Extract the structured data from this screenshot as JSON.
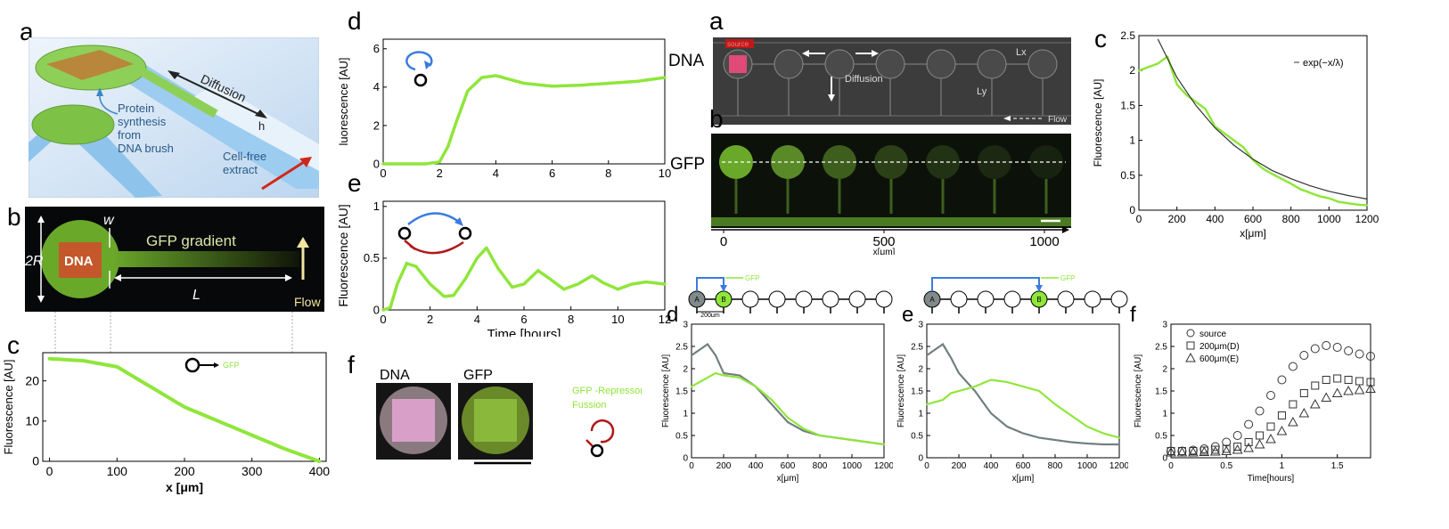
{
  "left": {
    "a": {
      "label": "a",
      "diffusion": "Diffusion",
      "h": "h",
      "synthesis": [
        "Protein",
        "synthesis",
        "from",
        "DNA brush"
      ],
      "extract": [
        "Cell-free",
        "extract"
      ]
    },
    "b": {
      "label": "b",
      "w": "w",
      "r2": "2R",
      "dna": "DNA",
      "gradient": "GFP gradient",
      "L": "L",
      "flow": "Flow"
    },
    "c": {
      "label": "c",
      "gfp": "GFP",
      "chart_data": {
        "type": "line",
        "x": [
          0,
          50,
          100,
          150,
          200,
          250,
          300,
          350,
          400
        ],
        "values": [
          25.5,
          25,
          23.5,
          18.5,
          13.5,
          10,
          6.5,
          3,
          0
        ],
        "xlabel": "x [μm]",
        "ylabel": "Fluorescence [AU]",
        "xticks": [
          "0",
          "100",
          "200",
          "300",
          "400"
        ],
        "yticks": [
          "0",
          "10",
          "20"
        ],
        "xlim": [
          -10,
          410
        ],
        "ylim": [
          0,
          27
        ]
      }
    },
    "d": {
      "label": "d",
      "chart_data": {
        "type": "line",
        "x": [
          0,
          1,
          1.5,
          2,
          2.3,
          2.6,
          3,
          3.5,
          4,
          5,
          6,
          7,
          8,
          9,
          10
        ],
        "values": [
          0,
          0,
          0,
          0.1,
          0.9,
          2.2,
          3.8,
          4.5,
          4.6,
          4.2,
          4.05,
          4.1,
          4.2,
          4.3,
          4.5
        ],
        "ylabel": "luorescence [AU]",
        "xticks": [
          "0",
          "2",
          "4",
          "6",
          "8",
          "10"
        ],
        "yticks": [
          "0",
          "2",
          "4",
          "6"
        ],
        "xlim": [
          0,
          10
        ],
        "ylim": [
          0,
          6.5
        ]
      }
    },
    "e": {
      "label": "e",
      "chart_data": {
        "type": "line",
        "x": [
          0,
          0.3,
          0.6,
          1,
          1.4,
          2,
          2.6,
          3,
          3.5,
          4,
          4.4,
          4.9,
          5.5,
          6,
          6.6,
          7.1,
          7.7,
          8.3,
          8.9,
          9.4,
          10,
          10.6,
          11.2,
          12
        ],
        "values": [
          0,
          0.02,
          0.25,
          0.45,
          0.42,
          0.25,
          0.13,
          0.14,
          0.3,
          0.5,
          0.6,
          0.4,
          0.22,
          0.25,
          0.38,
          0.3,
          0.2,
          0.25,
          0.33,
          0.26,
          0.2,
          0.25,
          0.27,
          0.25
        ],
        "xlabel": "Time [hours]",
        "ylabel": "Fluorescence [AU]",
        "xticks": [
          "0",
          "2",
          "4",
          "6",
          "8",
          "10",
          "12"
        ],
        "yticks": [
          "0",
          "0.5",
          "1"
        ],
        "xlim": [
          0,
          12
        ],
        "ylim": [
          0,
          1.05
        ]
      }
    },
    "f": {
      "label": "f",
      "dna": "DNA",
      "gfp": "GFP",
      "fusion": [
        "GFP -Repressor",
        "Fussion"
      ]
    }
  },
  "right": {
    "a": {
      "label": "a",
      "dna": "DNA",
      "source": "source",
      "diffusion": "Diffusion",
      "lx": "Lx",
      "ly": "Ly",
      "flow": "Flow"
    },
    "b": {
      "label": "b",
      "gfp": "GFP",
      "xticks": [
        "0",
        "500",
        "1000"
      ],
      "xlabel": "x[μm]"
    },
    "c": {
      "label": "c",
      "legend": "exp(−x/λ)",
      "chart_data": {
        "type": "line",
        "x": [
          0,
          100,
          150,
          200,
          250,
          300,
          350,
          400,
          450,
          500,
          550,
          600,
          650,
          700,
          750,
          800,
          850,
          900,
          950,
          1000,
          1050,
          1100,
          1150,
          1200
        ],
        "values": [
          2.0,
          2.1,
          2.2,
          1.8,
          1.65,
          1.55,
          1.45,
          1.2,
          1.1,
          1.0,
          0.9,
          0.72,
          0.6,
          0.52,
          0.45,
          0.38,
          0.3,
          0.25,
          0.2,
          0.17,
          0.12,
          0.1,
          0.08,
          0.07
        ],
        "fit": {
          "x": [
            100,
            200,
            300,
            400,
            500,
            600,
            700,
            800,
            900,
            1000,
            1100,
            1200
          ],
          "values": [
            2.45,
            1.9,
            1.5,
            1.18,
            0.93,
            0.73,
            0.57,
            0.45,
            0.35,
            0.27,
            0.21,
            0.16
          ]
        },
        "xlabel": "x[μm]",
        "ylabel": "Fluorescence [AU]",
        "xticks": [
          "0",
          "200",
          "400",
          "600",
          "800",
          "1000",
          "1200"
        ],
        "yticks": [
          "0",
          "0.5",
          "1",
          "1.5",
          "2",
          "2.5"
        ],
        "xlim": [
          0,
          1200
        ],
        "ylim": [
          0,
          2.5
        ]
      }
    },
    "d": {
      "label": "d",
      "gfp": "GFP",
      "node_a": "A",
      "node_b": "B",
      "spacing": "200μm",
      "chart_data": {
        "type": "line",
        "x": [
          0,
          100,
          150,
          200,
          300,
          400,
          500,
          600,
          700,
          800,
          900,
          1000,
          1100,
          1200
        ],
        "series": [
          {
            "values": [
              2.3,
              2.55,
              2.3,
              1.9,
              1.85,
              1.6,
              1.2,
              0.8,
              0.6,
              0.5,
              0.45,
              0.4,
              0.35,
              0.3
            ]
          },
          {
            "values": [
              1.6,
              1.8,
              1.9,
              1.85,
              1.8,
              1.6,
              1.3,
              0.9,
              0.65,
              0.5,
              0.45,
              0.4,
              0.35,
              0.3
            ]
          }
        ],
        "xlabel": "x[μm]",
        "ylabel": "Fluorescence [AU]",
        "xticks": [
          "0",
          "200",
          "400",
          "600",
          "800",
          "1000",
          "1200"
        ],
        "yticks": [
          "0",
          "0.5",
          "1",
          "1.5",
          "2",
          "2.5",
          "3"
        ],
        "xlim": [
          0,
          1200
        ],
        "ylim": [
          0,
          3
        ]
      }
    },
    "e": {
      "label": "e",
      "gfp": "GFP",
      "node_a": "A",
      "node_b": "B",
      "chart_data": {
        "type": "line",
        "x": [
          0,
          100,
          150,
          200,
          300,
          400,
          500,
          600,
          700,
          800,
          900,
          1000,
          1100,
          1200
        ],
        "series": [
          {
            "values": [
              2.3,
              2.55,
              2.25,
              1.9,
              1.5,
              1.0,
              0.7,
              0.55,
              0.45,
              0.4,
              0.35,
              0.32,
              0.3,
              0.3
            ]
          },
          {
            "values": [
              1.2,
              1.3,
              1.45,
              1.5,
              1.6,
              1.75,
              1.7,
              1.6,
              1.5,
              1.2,
              0.95,
              0.7,
              0.55,
              0.45
            ]
          }
        ],
        "xlabel": "x[μm]",
        "ylabel": "Fluorescence [AU]",
        "xticks": [
          "0",
          "200",
          "400",
          "600",
          "800",
          "1000",
          "1200"
        ],
        "yticks": [
          "0",
          "0.5",
          "1",
          "1.5",
          "2",
          "2.5",
          "3"
        ],
        "xlim": [
          0,
          1200
        ],
        "ylim": [
          0,
          3
        ]
      }
    },
    "f": {
      "label": "f",
      "chart_data": {
        "type": "scatter",
        "x": [
          0,
          0.1,
          0.2,
          0.3,
          0.4,
          0.5,
          0.6,
          0.7,
          0.8,
          0.9,
          1.0,
          1.1,
          1.2,
          1.3,
          1.4,
          1.5,
          1.6,
          1.7,
          1.8
        ],
        "series": [
          {
            "name": "source",
            "values": [
              0.15,
              0.15,
              0.17,
              0.2,
              0.25,
              0.35,
              0.5,
              0.75,
              1.05,
              1.4,
              1.75,
              2.05,
              2.3,
              2.45,
              2.52,
              2.48,
              2.4,
              2.33,
              2.28
            ]
          },
          {
            "name": "200μm(D)",
            "values": [
              0.15,
              0.15,
              0.15,
              0.16,
              0.18,
              0.2,
              0.25,
              0.35,
              0.5,
              0.7,
              0.95,
              1.2,
              1.45,
              1.62,
              1.75,
              1.78,
              1.75,
              1.72,
              1.7
            ]
          },
          {
            "name": "600μm(E)",
            "values": [
              0.12,
              0.12,
              0.12,
              0.13,
              0.14,
              0.15,
              0.18,
              0.22,
              0.3,
              0.42,
              0.6,
              0.8,
              1.0,
              1.2,
              1.35,
              1.45,
              1.5,
              1.52,
              1.55
            ]
          }
        ],
        "xlabel": "Time[hours]",
        "ylabel": "Fluorescence [AU]",
        "xticks": [
          "0",
          "0.5",
          "1",
          "1.5"
        ],
        "yticks": [
          "0",
          "0.5",
          "1",
          "1.5",
          "2",
          "2.5",
          "3"
        ],
        "xlim": [
          0,
          1.8
        ],
        "ylim": [
          0,
          3
        ]
      }
    }
  },
  "colors": {
    "green": "#8fe63a",
    "gray": "#6f7f7f",
    "blue": "#3a7be0",
    "red": "#b01818",
    "pink": "#e04a78",
    "orange": "#c8742c"
  }
}
